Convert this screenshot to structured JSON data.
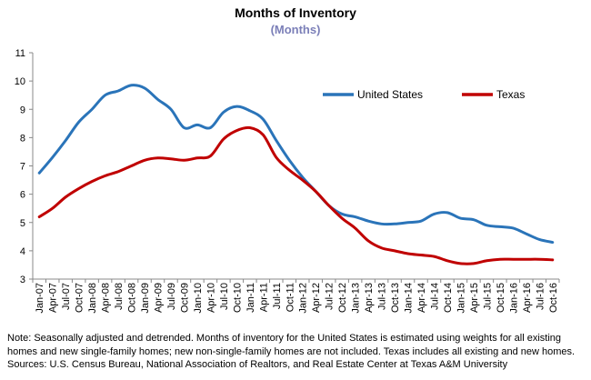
{
  "chart_data": {
    "type": "line",
    "title": "Months of Inventory",
    "subtitle": "(Months)",
    "ylim": [
      3,
      11
    ],
    "yticks": [
      3,
      4,
      5,
      6,
      7,
      8,
      9,
      10,
      11
    ],
    "grid": false,
    "legend_position": "top-right",
    "x_tick_labels": [
      "Jan-07",
      "Apr-07",
      "Jul-07",
      "Oct-07",
      "Jan-08",
      "Apr-08",
      "Jul-08",
      "Oct-08",
      "Jan-09",
      "Apr-09",
      "Jul-09",
      "Oct-09",
      "Jan-10",
      "Apr-10",
      "Jul-10",
      "Oct-10",
      "Jan-11",
      "Apr-11",
      "Jul-11",
      "Oct-11",
      "Jan-12",
      "Apr-12",
      "Jul-12",
      "Oct-12",
      "Jan-13",
      "Apr-13",
      "Jul-13",
      "Oct-13",
      "Jan-14",
      "Apr-14",
      "Jul-14",
      "Oct-14",
      "Jan-15",
      "Apr-15",
      "Jul-15",
      "Oct-15",
      "Jan-16",
      "Apr-16",
      "Jul-16",
      "Oct-16"
    ],
    "series": [
      {
        "name": "United States",
        "color": "#2a74b9",
        "values": [
          6.75,
          7.3,
          7.9,
          8.55,
          9.0,
          9.5,
          9.65,
          9.85,
          9.75,
          9.35,
          9.0,
          8.35,
          8.45,
          8.35,
          8.9,
          9.1,
          8.95,
          8.65,
          7.9,
          7.2,
          6.6,
          6.1,
          5.6,
          5.3,
          5.2,
          5.05,
          4.95,
          4.95,
          5.0,
          5.05,
          5.3,
          5.35,
          5.15,
          5.1,
          4.9,
          4.85,
          4.8,
          4.6,
          4.4,
          4.3
        ]
      },
      {
        "name": "Texas",
        "color": "#c00000",
        "values": [
          5.2,
          5.5,
          5.9,
          6.2,
          6.45,
          6.65,
          6.8,
          7.0,
          7.2,
          7.28,
          7.25,
          7.2,
          7.28,
          7.35,
          7.95,
          8.25,
          8.35,
          8.1,
          7.3,
          6.85,
          6.5,
          6.1,
          5.6,
          5.15,
          4.8,
          4.35,
          4.1,
          4.0,
          3.9,
          3.85,
          3.8,
          3.65,
          3.55,
          3.55,
          3.65,
          3.7,
          3.7,
          3.7,
          3.7,
          3.68
        ]
      }
    ]
  },
  "footnote": {
    "line1": "Note: Seasonally adjusted and detrended. Months of inventory for the United States is estimated using weights for all existing",
    "line2": "homes and new single-family homes; new non-single-family homes are not included. Texas includes all existing and new homes.",
    "line3": "Sources: U.S. Census Bureau, National Association of Realtors, and Real Estate Center at Texas A&M University"
  }
}
